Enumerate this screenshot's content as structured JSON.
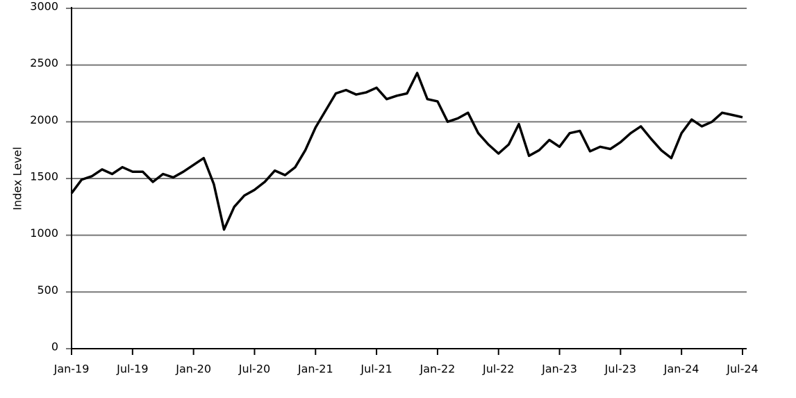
{
  "chart_data": {
    "type": "line",
    "y_label": "Index Level",
    "x": [
      "2019-01",
      "2019-02",
      "2019-03",
      "2019-04",
      "2019-05",
      "2019-06",
      "2019-07",
      "2019-08",
      "2019-09",
      "2019-10",
      "2019-11",
      "2019-12",
      "2020-01",
      "2020-02",
      "2020-03",
      "2020-04",
      "2020-05",
      "2020-06",
      "2020-07",
      "2020-08",
      "2020-09",
      "2020-10",
      "2020-11",
      "2020-12",
      "2021-01",
      "2021-02",
      "2021-03",
      "2021-04",
      "2021-05",
      "2021-06",
      "2021-07",
      "2021-08",
      "2021-09",
      "2021-10",
      "2021-11",
      "2021-12",
      "2022-01",
      "2022-02",
      "2022-03",
      "2022-04",
      "2022-05",
      "2022-06",
      "2022-07",
      "2022-08",
      "2022-09",
      "2022-10",
      "2022-11",
      "2022-12",
      "2023-01",
      "2023-02",
      "2023-03",
      "2023-04",
      "2023-05",
      "2023-06",
      "2023-07",
      "2023-08",
      "2023-09",
      "2023-10",
      "2023-11",
      "2023-12",
      "2024-01",
      "2024-02",
      "2024-03",
      "2024-04",
      "2024-05",
      "2024-06",
      "2024-07"
    ],
    "series": [
      {
        "name": "Index Level",
        "color": "#000000",
        "values": [
          1370,
          1490,
          1520,
          1580,
          1540,
          1600,
          1560,
          1560,
          1470,
          1540,
          1510,
          1560,
          1620,
          1680,
          1450,
          1050,
          1250,
          1350,
          1400,
          1470,
          1570,
          1530,
          1600,
          1750,
          1950,
          2100,
          2250,
          2280,
          2240,
          2260,
          2300,
          2200,
          2230,
          2250,
          2430,
          2200,
          2180,
          2000,
          2030,
          2080,
          1900,
          1800,
          1720,
          1800,
          1980,
          1700,
          1750,
          1840,
          1780,
          1900,
          1920,
          1740,
          1780,
          1760,
          1820,
          1900,
          1960,
          1850,
          1750,
          1680,
          1900,
          2020,
          1960,
          2000,
          2080,
          2060,
          2040
        ]
      }
    ],
    "xticks": [
      {
        "value": "2019-01",
        "label": "Jan-19"
      },
      {
        "value": "2019-07",
        "label": "Jul-19"
      },
      {
        "value": "2020-01",
        "label": "Jan-20"
      },
      {
        "value": "2020-07",
        "label": "Jul-20"
      },
      {
        "value": "2021-01",
        "label": "Jan-21"
      },
      {
        "value": "2021-07",
        "label": "Jul-21"
      },
      {
        "value": "2022-01",
        "label": "Jan-22"
      },
      {
        "value": "2022-07",
        "label": "Jul-22"
      },
      {
        "value": "2023-01",
        "label": "Jan-23"
      },
      {
        "value": "2023-07",
        "label": "Jul-23"
      },
      {
        "value": "2024-01",
        "label": "Jan-24"
      },
      {
        "value": "2024-07",
        "label": "Jul-24"
      }
    ],
    "ylim": [
      0,
      3000
    ],
    "yticks": [
      0,
      500,
      1000,
      1500,
      2000,
      2500,
      3000
    ],
    "grid": true
  }
}
